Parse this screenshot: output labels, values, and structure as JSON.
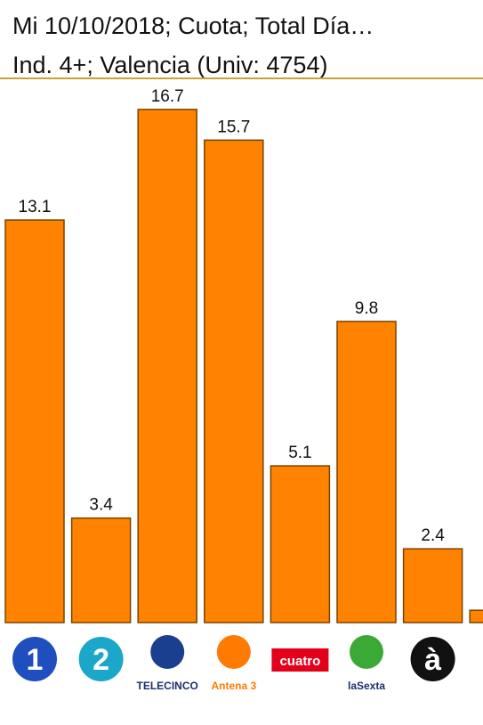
{
  "title": "Mi 10/10/2018; Cuota; Total Día…",
  "subtitle": "Ind. 4+; Valencia (Univ: 4754)",
  "chart_data": {
    "type": "bar",
    "categories": [
      "1",
      "2",
      "TELECINCO",
      "Antena 3",
      "cuatro",
      "laSexta",
      "à",
      null
    ],
    "values": [
      13.1,
      3.4,
      16.7,
      15.7,
      5.1,
      9.8,
      2.4,
      0.4
    ],
    "value_labels": [
      "13.1",
      "3.4",
      "16.7",
      "15.7",
      "5.1",
      "9.8",
      "2.4",
      null
    ],
    "color": "#ff8200"
  }
}
